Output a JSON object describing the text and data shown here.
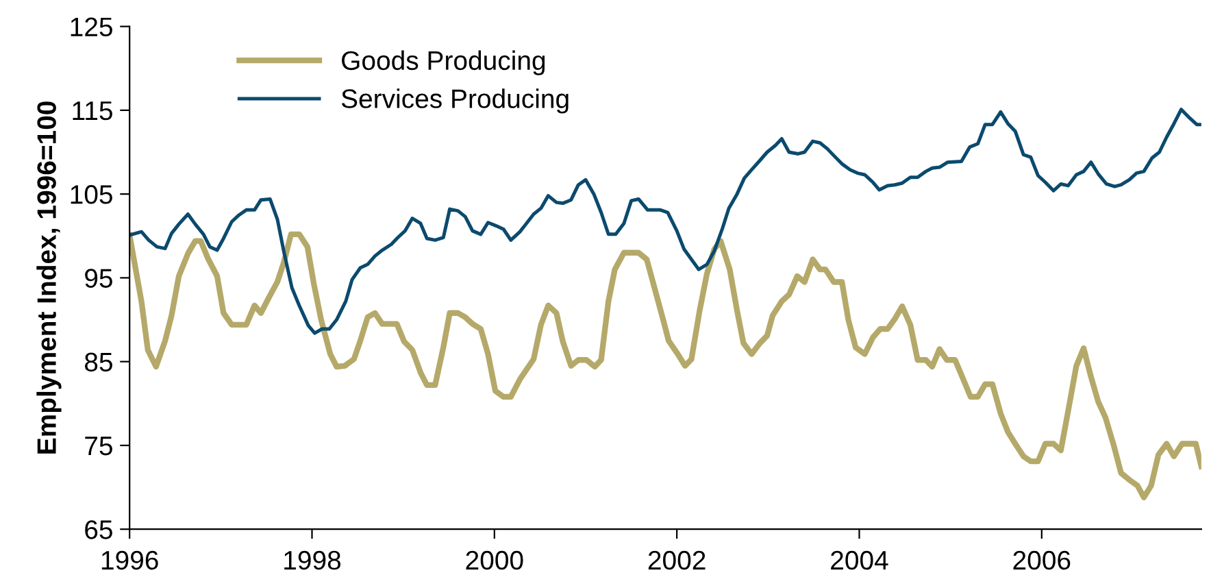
{
  "chart_data": {
    "type": "line",
    "ylabel": "Emplyment Index, 1996=100",
    "xlim": [
      1996,
      2007.75
    ],
    "xticks": [
      1996,
      1998,
      2000,
      2002,
      2004,
      2006
    ],
    "ylim": [
      65,
      125
    ],
    "yticks": [
      65,
      75,
      85,
      95,
      105,
      115,
      125
    ],
    "grid": false,
    "legend": "top left",
    "marker": "none",
    "line_style": "solid",
    "series": [
      {
        "name": "Goods Producing",
        "color": "#b5a96a",
        "x": [
          1996.0,
          1996.13,
          1996.2,
          1996.29,
          1996.39,
          1996.46,
          1996.54,
          1996.64,
          1996.72,
          1996.78,
          1996.86,
          1996.96,
          1997.03,
          1997.12,
          1997.28,
          1997.37,
          1997.44,
          1997.53,
          1997.62,
          1997.69,
          1997.77,
          1997.86,
          1997.95,
          1998.02,
          1998.1,
          1998.2,
          1998.27,
          1998.36,
          1998.46,
          1998.53,
          1998.61,
          1998.69,
          1998.77,
          1998.93,
          1999.01,
          1999.1,
          1999.19,
          1999.26,
          1999.35,
          1999.44,
          1999.51,
          1999.6,
          1999.68,
          1999.76,
          1999.85,
          1999.93,
          2000.01,
          2000.1,
          2000.18,
          2000.28,
          2000.43,
          2000.51,
          2000.59,
          2000.68,
          2000.75,
          2000.84,
          2000.92,
          2001.01,
          2001.1,
          2001.17,
          2001.25,
          2001.32,
          2001.42,
          2001.58,
          2001.67,
          2001.77,
          2001.85,
          2001.91,
          2002.01,
          2002.09,
          2002.16,
          2002.25,
          2002.33,
          2002.41,
          2002.48,
          2002.58,
          2002.66,
          2002.73,
          2002.82,
          2002.91,
          2002.99,
          2003.05,
          2003.15,
          2003.23,
          2003.32,
          2003.4,
          2003.49,
          2003.57,
          2003.63,
          2003.72,
          2003.81,
          2003.88,
          2003.96,
          2004.06,
          2004.15,
          2004.23,
          2004.31,
          2004.39,
          2004.47,
          2004.56,
          2004.64,
          2004.73,
          2004.8,
          2004.88,
          2004.96,
          2005.05,
          2005.14,
          2005.22,
          2005.3,
          2005.38,
          2005.46,
          2005.55,
          2005.63,
          2005.71,
          2005.8,
          2005.88,
          2005.96,
          2006.04,
          2006.13,
          2006.21,
          2006.29,
          2006.38,
          2006.46,
          2006.54,
          2006.62,
          2006.7,
          2006.79,
          2006.87,
          2006.96,
          2007.05,
          2007.12,
          2007.2,
          2007.28,
          2007.37,
          2007.45,
          2007.54,
          2007.69,
          2007.75
        ],
        "values": [
          100.1,
          92.2,
          86.4,
          84.4,
          87.5,
          90.5,
          95.2,
          97.9,
          99.4,
          99.4,
          97.3,
          95.2,
          90.8,
          89.4,
          89.4,
          91.7,
          90.8,
          92.7,
          94.5,
          96.8,
          100.2,
          100.2,
          98.7,
          94.3,
          90.0,
          85.9,
          84.4,
          84.5,
          85.3,
          87.5,
          90.3,
          90.8,
          89.5,
          89.5,
          87.4,
          86.4,
          83.7,
          82.2,
          82.2,
          86.7,
          90.8,
          90.8,
          90.3,
          89.5,
          88.9,
          85.9,
          81.5,
          80.8,
          80.8,
          82.9,
          85.3,
          89.4,
          91.7,
          90.8,
          87.4,
          84.5,
          85.2,
          85.2,
          84.4,
          85.2,
          92.2,
          96.0,
          98.0,
          98.0,
          97.2,
          93.2,
          90.0,
          87.5,
          85.9,
          84.5,
          85.3,
          91.1,
          95.5,
          98.4,
          99.4,
          96.0,
          91.1,
          87.2,
          85.9,
          87.2,
          88.1,
          90.5,
          92.2,
          93.0,
          95.2,
          94.5,
          97.2,
          96.0,
          96.0,
          94.5,
          94.5,
          90.0,
          86.7,
          85.9,
          87.9,
          88.9,
          88.9,
          90.1,
          91.6,
          89.4,
          85.2,
          85.2,
          84.4,
          86.5,
          85.2,
          85.2,
          82.9,
          80.8,
          80.8,
          82.3,
          82.3,
          78.8,
          76.6,
          75.2,
          73.7,
          73.1,
          73.1,
          75.2,
          75.2,
          74.4,
          79.1,
          84.5,
          86.6,
          83.2,
          80.2,
          78.3,
          75.0,
          71.7,
          70.9,
          70.2,
          68.8,
          70.2,
          73.9,
          75.2,
          73.7,
          75.2,
          75.2,
          72.5
        ]
      },
      {
        "name": "Services Producing",
        "color": "#0b4a6e",
        "x": [
          1996.0,
          1996.13,
          1996.21,
          1996.3,
          1996.39,
          1996.46,
          1996.54,
          1996.64,
          1996.72,
          1996.81,
          1996.88,
          1996.96,
          1997.03,
          1997.12,
          1997.2,
          1997.28,
          1997.37,
          1997.44,
          1997.54,
          1997.62,
          1997.69,
          1997.78,
          1997.86,
          1997.96,
          1998.03,
          1998.11,
          1998.19,
          1998.27,
          1998.37,
          1998.44,
          1998.53,
          1998.61,
          1998.69,
          1998.77,
          1998.87,
          1998.94,
          1999.02,
          1999.1,
          1999.19,
          1999.26,
          1999.35,
          1999.44,
          1999.51,
          1999.6,
          1999.68,
          1999.76,
          1999.85,
          1999.93,
          2000.02,
          2000.1,
          2000.18,
          2000.28,
          2000.43,
          2000.51,
          2000.59,
          2000.68,
          2000.75,
          2000.84,
          2000.92,
          2001.0,
          2001.09,
          2001.17,
          2001.25,
          2001.33,
          2001.42,
          2001.5,
          2001.58,
          2001.68,
          2001.82,
          2001.9,
          2002.0,
          2002.08,
          2002.16,
          2002.24,
          2002.33,
          2002.41,
          2002.5,
          2002.57,
          2002.66,
          2002.74,
          2002.82,
          2002.91,
          2002.99,
          2003.08,
          2003.15,
          2003.23,
          2003.33,
          2003.4,
          2003.49,
          2003.57,
          2003.65,
          2003.72,
          2003.81,
          2003.9,
          2003.98,
          2004.06,
          2004.15,
          2004.22,
          2004.31,
          2004.39,
          2004.47,
          2004.56,
          2004.64,
          2004.73,
          2004.8,
          2004.88,
          2004.97,
          2005.12,
          2005.21,
          2005.3,
          2005.38,
          2005.46,
          2005.55,
          2005.63,
          2005.71,
          2005.8,
          2005.88,
          2005.96,
          2006.04,
          2006.13,
          2006.21,
          2006.29,
          2006.38,
          2006.46,
          2006.54,
          2006.62,
          2006.71,
          2006.8,
          2006.87,
          2006.96,
          2007.04,
          2007.12,
          2007.21,
          2007.29,
          2007.37,
          2007.45,
          2007.53,
          2007.62,
          2007.7,
          2007.75
        ],
        "values": [
          100.1,
          100.5,
          99.5,
          98.7,
          98.5,
          100.3,
          101.4,
          102.6,
          101.4,
          100.2,
          98.7,
          98.3,
          99.7,
          101.7,
          102.5,
          103.1,
          103.1,
          104.3,
          104.4,
          102.0,
          98.2,
          93.8,
          91.7,
          89.3,
          88.4,
          88.9,
          88.9,
          90.0,
          92.2,
          94.8,
          96.2,
          96.6,
          97.6,
          98.3,
          99.0,
          99.8,
          100.6,
          102.1,
          101.5,
          99.7,
          99.5,
          99.8,
          103.2,
          103.0,
          102.3,
          100.6,
          100.2,
          101.6,
          101.2,
          100.8,
          99.5,
          100.5,
          102.6,
          103.3,
          104.8,
          104.0,
          103.9,
          104.3,
          106.1,
          106.7,
          105.0,
          102.8,
          100.2,
          100.2,
          101.5,
          104.2,
          104.4,
          103.1,
          103.1,
          102.8,
          100.6,
          98.4,
          97.2,
          96.0,
          96.6,
          98.2,
          100.9,
          103.3,
          105.0,
          106.9,
          107.9,
          109.0,
          110.0,
          110.8,
          111.6,
          110.0,
          109.8,
          110.0,
          111.3,
          111.1,
          110.4,
          109.6,
          108.6,
          107.9,
          107.5,
          107.3,
          106.4,
          105.5,
          106.0,
          106.1,
          106.3,
          107.0,
          107.0,
          107.7,
          108.1,
          108.2,
          108.8,
          108.9,
          110.6,
          111.0,
          113.3,
          113.3,
          114.8,
          113.4,
          112.5,
          109.7,
          109.4,
          107.2,
          106.4,
          105.4,
          106.2,
          106.0,
          107.3,
          107.7,
          108.8,
          107.4,
          106.2,
          105.9,
          106.1,
          106.7,
          107.5,
          107.7,
          109.3,
          110.0,
          111.8,
          113.4,
          115.1,
          114.1,
          113.3,
          113.3
        ]
      }
    ]
  }
}
